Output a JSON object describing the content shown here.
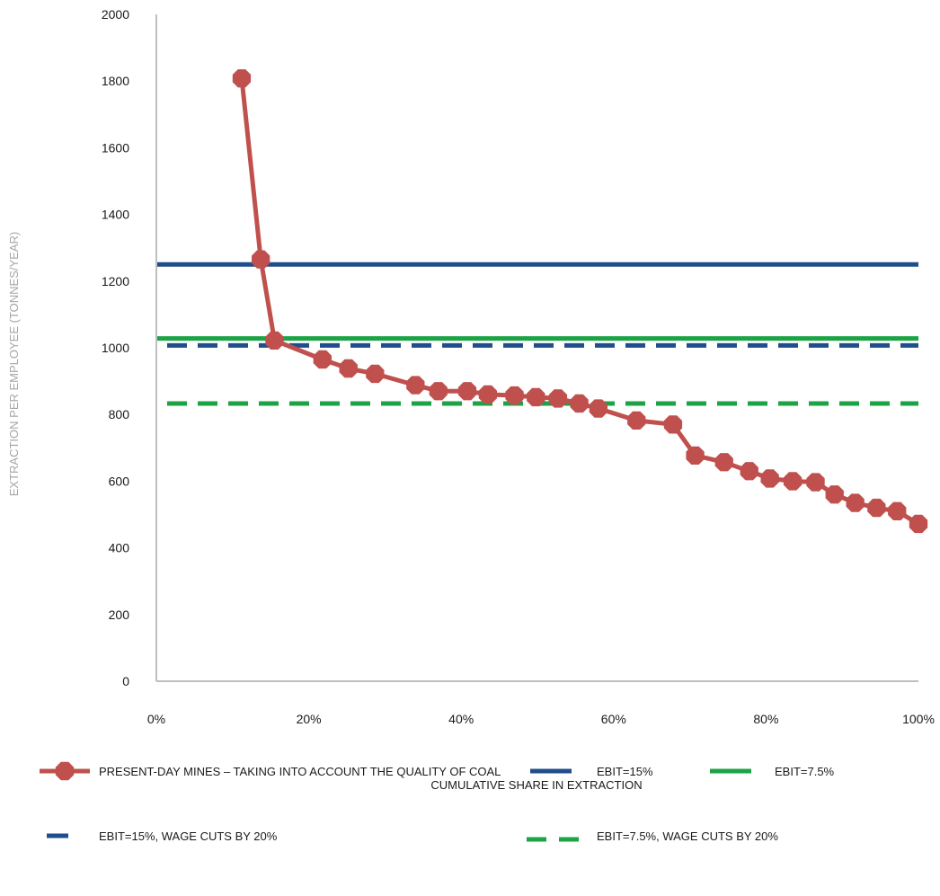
{
  "chart_data": {
    "type": "line",
    "xlabel": "CUMULATIVE SHARE IN EXTRACTION",
    "ylabel": "EXTRACTION PER EMPLOYEE (TONNES/YEAR)",
    "xlim": [
      0,
      100
    ],
    "ylim": [
      0,
      2000
    ],
    "x_ticks": [
      "0%",
      "20%",
      "40%",
      "60%",
      "80%",
      "100%"
    ],
    "x_tick_values": [
      0,
      20,
      40,
      60,
      80,
      100
    ],
    "y_ticks": [
      "0",
      "200",
      "400",
      "600",
      "800",
      "1000",
      "1200",
      "1400",
      "1600",
      "1800",
      "2000"
    ],
    "y_tick_values": [
      0,
      200,
      400,
      600,
      800,
      1000,
      1200,
      1400,
      1600,
      1800,
      2000
    ],
    "grid": false,
    "legend_position": "bottom",
    "series": [
      {
        "name": "PRESENT-DAY MINES – TAKING INTO ACCOUNT THE QUALITY OF COAL",
        "style": "line-markers",
        "color": "#C0504D",
        "x": [
          11.2,
          13.7,
          15.5,
          21.8,
          25.2,
          28.7,
          34.0,
          37.0,
          40.8,
          43.5,
          47.0,
          49.8,
          52.7,
          55.5,
          58.0,
          63.0,
          67.8,
          70.7,
          74.5,
          77.8,
          80.5,
          83.5,
          86.5,
          89.0,
          91.7,
          94.5,
          97.2,
          100.0
        ],
        "y": [
          1808,
          1265,
          1022,
          965,
          938,
          922,
          888,
          870,
          870,
          860,
          857,
          852,
          848,
          833,
          818,
          782,
          770,
          677,
          657,
          630,
          608,
          600,
          597,
          560,
          535,
          520,
          510,
          472
        ]
      },
      {
        "name": "EBIT=15%",
        "style": "solid",
        "color": "#1F4E8C",
        "x": [
          0,
          100
        ],
        "y": [
          1250,
          1250
        ]
      },
      {
        "name": "EBIT=7.5%",
        "style": "solid",
        "color": "#1BA345",
        "x": [
          0,
          100
        ],
        "y": [
          1028,
          1028
        ]
      },
      {
        "name": "EBIT=15%, WAGE CUTS BY 20%",
        "style": "dashed",
        "color": "#1F4E8C",
        "x": [
          0,
          100
        ],
        "y": [
          1007,
          1007
        ]
      },
      {
        "name": "EBIT=7.5%, WAGE CUTS BY 20%",
        "style": "dashed",
        "color": "#1BA345",
        "x": [
          0,
          100
        ],
        "y": [
          833,
          833
        ]
      }
    ]
  }
}
